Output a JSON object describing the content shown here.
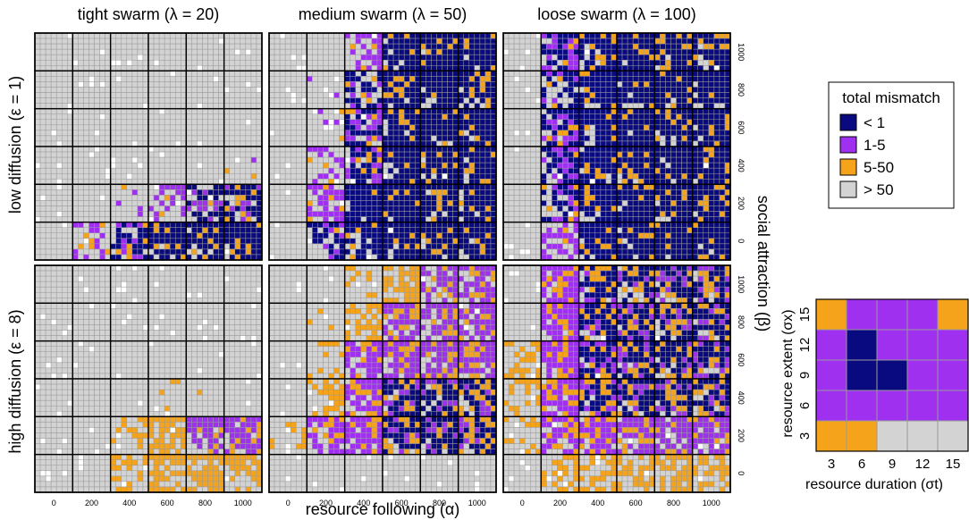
{
  "chart_data": {
    "type": "heatmap",
    "title": "",
    "colors": {
      "lt1": "#0a0a80",
      "r1_5": "#a030f0",
      "r5_50": "#f5a31a",
      "gt50": "#d3d3d3",
      "white": "#ffffff",
      "grid": "#999999"
    },
    "panel_titles": [
      "tight swarm  (λ = 20)",
      "medium swarm  (λ = 50)",
      "loose swarm  (λ = 100)"
    ],
    "row_labels": [
      "low diffusion  (ε = 1)",
      "high diffusion  (ε = 8)"
    ],
    "x_axis_label": "resource following  (α)",
    "y_axis_label": "social attraction  (β)",
    "alpha_values": [
      "0",
      "200",
      "400",
      "600",
      "800",
      "1000"
    ],
    "beta_values": [
      "1000",
      "800",
      "600",
      "400",
      "200",
      "0"
    ],
    "legend": {
      "title": "total mismatch",
      "items": [
        {
          "key": "lt1",
          "label": "< 1"
        },
        {
          "key": "r1_5",
          "label": "1-5"
        },
        {
          "key": "r5_50",
          "label": "5-50"
        },
        {
          "key": "gt50",
          "label": "> 50"
        }
      ]
    },
    "inset": {
      "x_label": "resource duration  (σt)",
      "y_label": "resource extent  (σx)",
      "x_ticks": [
        "3",
        "6",
        "9",
        "12",
        "15"
      ],
      "y_ticks": [
        "15",
        "12",
        "9",
        "6",
        "3"
      ],
      "grid_top_to_bottom": [
        [
          "r5_50",
          "r1_5",
          "r1_5",
          "r1_5",
          "r5_50"
        ],
        [
          "r1_5",
          "lt1",
          "r1_5",
          "r1_5",
          "r1_5"
        ],
        [
          "r1_5",
          "lt1",
          "lt1",
          "r1_5",
          "r1_5"
        ],
        [
          "r1_5",
          "r1_5",
          "r1_5",
          "r1_5",
          "r1_5"
        ],
        [
          "r5_50",
          "r5_50",
          "gt50",
          "gt50",
          "gt50"
        ]
      ]
    },
    "panels": [
      {
        "diffusion": "low",
        "swarm": "tight",
        "ref": "A0",
        "fill": [
          [
            0,
            0,
            0,
            0,
            0,
            0
          ],
          [
            0,
            0,
            0,
            0,
            0,
            0
          ],
          [
            0,
            0,
            0,
            0,
            0,
            0
          ],
          [
            0,
            0,
            0,
            0,
            0,
            0.05
          ],
          [
            0,
            0,
            0.1,
            0.45,
            0.7,
            0.85
          ],
          [
            0,
            0.4,
            0.75,
            0.95,
            0.95,
            0.95
          ]
        ]
      },
      {
        "diffusion": "low",
        "swarm": "medium",
        "ref": "A1",
        "fill": [
          [
            0,
            0,
            0.5,
            0.92,
            0.96,
            0.97
          ],
          [
            0,
            0.05,
            0.6,
            0.92,
            0.96,
            0.97
          ],
          [
            0,
            0.05,
            0.8,
            0.96,
            0.97,
            0.97
          ],
          [
            0,
            0.4,
            0.85,
            0.97,
            0.97,
            0.97
          ],
          [
            0,
            0.55,
            0.9,
            0.97,
            0.97,
            0.97
          ],
          [
            0,
            0.6,
            0.9,
            0.97,
            0.97,
            0.97
          ]
        ]
      },
      {
        "diffusion": "low",
        "swarm": "loose",
        "ref": "A2",
        "fill": [
          [
            0,
            0.85,
            0.95,
            0.97,
            0.97,
            0.97
          ],
          [
            0,
            0.8,
            0.95,
            0.97,
            0.97,
            0.97
          ],
          [
            0,
            0.85,
            0.96,
            0.97,
            0.97,
            0.97
          ],
          [
            0,
            0.85,
            0.96,
            0.97,
            0.97,
            0.97
          ],
          [
            0,
            0.75,
            0.95,
            0.97,
            0.97,
            0.97
          ],
          [
            0,
            0.55,
            0.95,
            0.97,
            0.97,
            0.97
          ]
        ]
      },
      {
        "diffusion": "high",
        "swarm": "tight",
        "ref": "B0",
        "fill": [
          [
            0,
            0,
            0,
            0,
            0,
            0
          ],
          [
            0,
            0,
            0,
            0,
            0,
            0
          ],
          [
            0,
            0,
            0,
            0,
            0,
            0
          ],
          [
            0,
            0,
            0,
            0.05,
            0.05,
            0
          ],
          [
            0,
            0,
            0.3,
            0.6,
            0.8,
            0.85
          ],
          [
            0,
            0,
            0.45,
            0.6,
            0.6,
            0.55
          ]
        ]
      },
      {
        "diffusion": "high",
        "swarm": "medium",
        "ref": "B1",
        "fill": [
          [
            0,
            0,
            0.2,
            0.6,
            0.7,
            0.7
          ],
          [
            0,
            0.05,
            0.55,
            0.8,
            0.85,
            0.85
          ],
          [
            0,
            0.2,
            0.75,
            0.9,
            0.9,
            0.9
          ],
          [
            0,
            0.45,
            0.8,
            0.95,
            0.95,
            0.95
          ],
          [
            0.35,
            0.75,
            0.9,
            0.97,
            0.97,
            0.97
          ],
          [
            0,
            0,
            0,
            0,
            0,
            0
          ]
        ]
      },
      {
        "diffusion": "high",
        "swarm": "loose",
        "ref": "B2",
        "fill": [
          [
            0,
            0.9,
            0.95,
            0.95,
            0.95,
            0.95
          ],
          [
            0,
            0.9,
            0.96,
            0.96,
            0.96,
            0.96
          ],
          [
            0.35,
            0.9,
            0.96,
            0.96,
            0.96,
            0.96
          ],
          [
            0.3,
            0.85,
            0.95,
            0.95,
            0.95,
            0.95
          ],
          [
            0.3,
            0.75,
            0.85,
            0.85,
            0.85,
            0.85
          ],
          [
            0,
            0.45,
            0.5,
            0.55,
            0.55,
            0.5
          ]
        ]
      }
    ]
  }
}
